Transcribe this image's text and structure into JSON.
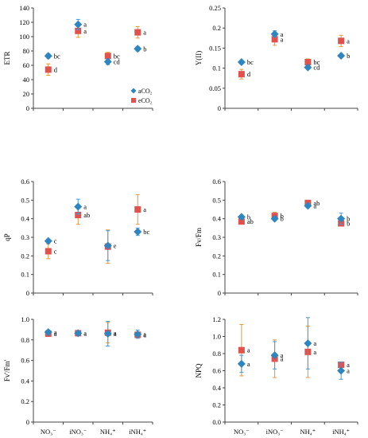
{
  "colors": {
    "aCO2": "#2e86c1",
    "eCO2": "#e0524b",
    "aCO2_err": "#3f9be0",
    "eCO2_err": "#e8962e",
    "axis": "#444444"
  },
  "legend_labels": [
    "aCO₂",
    "eCO₂"
  ],
  "chart_data": [
    {
      "type": "scatter",
      "ylabel": "ETR",
      "ylim": [
        0,
        140
      ],
      "yticks": [
        "0",
        "20",
        "40",
        "60",
        "80",
        "100",
        "120",
        "140"
      ],
      "categories": [
        "NO₃⁻",
        "iNO₃⁻",
        "NH₄⁺",
        "iNH₄⁺"
      ],
      "show_xticklabels": false,
      "legend": "bottom-right",
      "series": [
        {
          "name": "aCO₂",
          "values": [
            73,
            117,
            65,
            83
          ],
          "errors": [
            3,
            7,
            4,
            3
          ],
          "letters": [
            "bc",
            "a",
            "cd",
            "b"
          ]
        },
        {
          "name": "eCO₂",
          "values": [
            54,
            108,
            73,
            106
          ],
          "errors": [
            8,
            9,
            5,
            8
          ],
          "letters": [
            "d",
            "a",
            "bc",
            "a"
          ]
        }
      ]
    },
    {
      "type": "scatter",
      "ylabel": "Y(II)",
      "ylim": [
        0,
        0.25
      ],
      "yticks": [
        "0",
        "0.05",
        "0.1",
        "0.15",
        "0.2",
        "0.25"
      ],
      "categories": [
        "NO₃⁻",
        "iNO₃⁻",
        "NH₄⁺",
        "iNH₄⁺"
      ],
      "show_xticklabels": false,
      "series": [
        {
          "name": "aCO₂",
          "values": [
            0.115,
            0.185,
            0.102,
            0.131
          ],
          "errors": [
            0.004,
            0.008,
            0.004,
            0.004
          ],
          "letters": [
            "bc",
            "a",
            "cd",
            "b"
          ]
        },
        {
          "name": "eCO₂",
          "values": [
            0.085,
            0.172,
            0.115,
            0.168
          ],
          "errors": [
            0.012,
            0.015,
            0.008,
            0.014
          ],
          "letters": [
            "d",
            "a",
            "bc",
            "a"
          ]
        }
      ]
    },
    {
      "type": "scatter",
      "ylabel": "qP",
      "ylim": [
        0,
        0.6
      ],
      "yticks": [
        "0",
        "0.1",
        "0.2",
        "0.3",
        "0.4",
        "0.5",
        "0.6"
      ],
      "categories": [
        "NO₃⁻",
        "iNO₃⁻",
        "NH₄⁺",
        "iNH₄⁺"
      ],
      "show_xticklabels": false,
      "series": [
        {
          "name": "aCO₂",
          "values": [
            0.28,
            0.465,
            0.255,
            0.33
          ],
          "errors": [
            0.01,
            0.04,
            0.08,
            0.02
          ],
          "letters": [
            "c",
            "a",
            "e",
            "bc"
          ]
        },
        {
          "name": "eCO₂",
          "values": [
            0.225,
            0.42,
            0.25,
            0.45
          ],
          "errors": [
            0.04,
            0.05,
            0.09,
            0.08
          ],
          "letters": [
            "c",
            "ab",
            "",
            "a"
          ]
        }
      ]
    },
    {
      "type": "scatter",
      "ylabel": "Fv/Fm",
      "ylim": [
        0,
        0.6
      ],
      "yticks": [
        "0",
        "0.1",
        "0.2",
        "0.3",
        "0.4",
        "0.5",
        "0.6"
      ],
      "categories": [
        "NO₃⁻",
        "iNO₃⁻",
        "NH₄⁺",
        "iNH₄⁺"
      ],
      "show_xticklabels": false,
      "series": [
        {
          "name": "aCO₂",
          "values": [
            0.41,
            0.4,
            0.47,
            0.4
          ],
          "errors": [
            0.01,
            0.01,
            0.01,
            0.03
          ],
          "letters": [
            "b",
            "b",
            "a",
            "b"
          ]
        },
        {
          "name": "eCO₂",
          "values": [
            0.385,
            0.415,
            0.485,
            0.375
          ],
          "errors": [
            0.01,
            0.02,
            0.01,
            0.01
          ],
          "letters": [
            "ab",
            "b",
            "ab",
            "b"
          ]
        }
      ]
    },
    {
      "type": "scatter",
      "ylabel": "Fv'/Fm'",
      "ylim": [
        0,
        1.0
      ],
      "yticks": [
        "0",
        "0.2",
        "0.4",
        "0.6",
        "0.8",
        "1.0"
      ],
      "categories": [
        "NO₃⁻",
        "iNO₃⁻",
        "NH₄⁺",
        "iNH₄⁺"
      ],
      "show_xticklabels": true,
      "series": [
        {
          "name": "aCO₂",
          "values": [
            0.875,
            0.865,
            0.86,
            0.855
          ],
          "errors": [
            0.02,
            0.02,
            0.12,
            0.04
          ],
          "letters": [
            "a",
            "a",
            "a",
            "a"
          ]
        },
        {
          "name": "eCO₂",
          "values": [
            0.86,
            0.865,
            0.87,
            0.85
          ],
          "errors": [
            0.02,
            0.02,
            0.1,
            0.02
          ],
          "letters": [
            "a",
            "a",
            "a",
            "a"
          ]
        }
      ]
    },
    {
      "type": "scatter",
      "ylabel": "NPQ",
      "ylim": [
        0,
        1.2
      ],
      "yticks": [
        "0.0",
        "0.2",
        "0.4",
        "0.6",
        "0.8",
        "1.0",
        "1.2"
      ],
      "categories": [
        "NO₃⁻",
        "iNO₃⁻",
        "NH₄⁺",
        "iNH₄⁺"
      ],
      "show_xticklabels": true,
      "series": [
        {
          "name": "aCO₂",
          "values": [
            0.68,
            0.78,
            0.92,
            0.6
          ],
          "errors": [
            0.1,
            0.16,
            0.3,
            0.1
          ],
          "letters": [
            "a",
            "a",
            "a",
            "a"
          ]
        },
        {
          "name": "eCO₂",
          "values": [
            0.84,
            0.74,
            0.82,
            0.67
          ],
          "errors": [
            0.3,
            0.22,
            0.3,
            0.03
          ],
          "letters": [
            "a",
            "a",
            "a",
            "a"
          ]
        }
      ]
    }
  ]
}
